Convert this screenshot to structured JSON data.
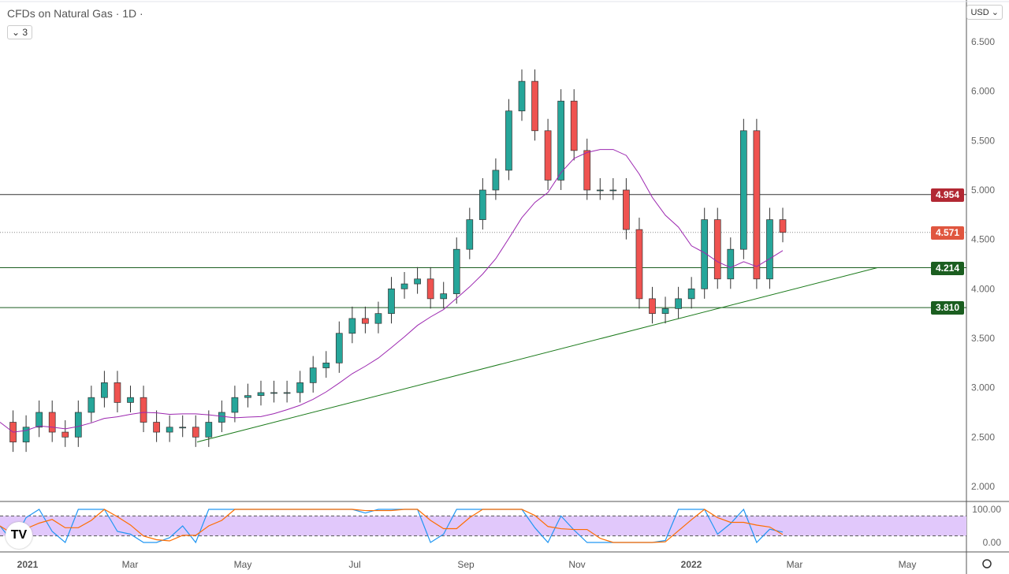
{
  "header": {
    "title": "CFDs on Natural Gas · 1D ·",
    "indicator_count": "3",
    "currency": "USD"
  },
  "colors": {
    "up": "#26a69a",
    "down": "#ef5350",
    "ma": "#9c27b0",
    "resistance": "#b22833",
    "support": "#1b5e20",
    "last": "#e0563f",
    "stoch_k": "#2196f3",
    "stoch_d": "#ff6d00",
    "stoch_band": "#e1c8fb"
  },
  "chart_data": {
    "type": "candlestick",
    "currency": "USD",
    "y_ticks": [
      "2.000",
      "2.500",
      "3.000",
      "3.500",
      "4.000",
      "4.500",
      "5.000",
      "5.500",
      "6.000",
      "6.500"
    ],
    "ylim": [
      1.75,
      6.7
    ],
    "x_ticks": [
      "2021",
      "Mar",
      "May",
      "Jul",
      "Sep",
      "Nov",
      "2022",
      "Mar",
      "May"
    ],
    "closes_approx_weekly": [
      2.65,
      2.45,
      2.6,
      2.75,
      2.55,
      2.5,
      2.75,
      2.9,
      3.05,
      2.85,
      2.9,
      2.65,
      2.55,
      2.6,
      2.6,
      2.5,
      2.65,
      2.75,
      2.9,
      2.92,
      2.95,
      2.95,
      2.95,
      3.05,
      3.2,
      3.25,
      3.55,
      3.7,
      3.65,
      3.75,
      4.0,
      4.05,
      4.1,
      3.9,
      3.95,
      4.4,
      4.7,
      5.0,
      5.2,
      5.8,
      6.1,
      5.6,
      5.1,
      5.9,
      5.4,
      5.0,
      5.0,
      5.0,
      4.6,
      3.9,
      3.75,
      3.8,
      3.9,
      4.0,
      4.7,
      4.1,
      4.4,
      5.6,
      4.1,
      4.7,
      4.571
    ],
    "levels": [
      {
        "price": 4.954,
        "label": "4.954",
        "kind": "resistance"
      },
      {
        "price": 4.214,
        "label": "4.214",
        "kind": "support"
      },
      {
        "price": 3.81,
        "label": "3.810",
        "kind": "support"
      }
    ],
    "last_price": {
      "price": 4.571,
      "label": "4.571"
    },
    "trendline": {
      "from_price": 2.45,
      "to_price": 4.214
    },
    "stochastic": {
      "y_ticks": [
        "100.00",
        "0.00"
      ],
      "bands": [
        20,
        80
      ]
    }
  }
}
